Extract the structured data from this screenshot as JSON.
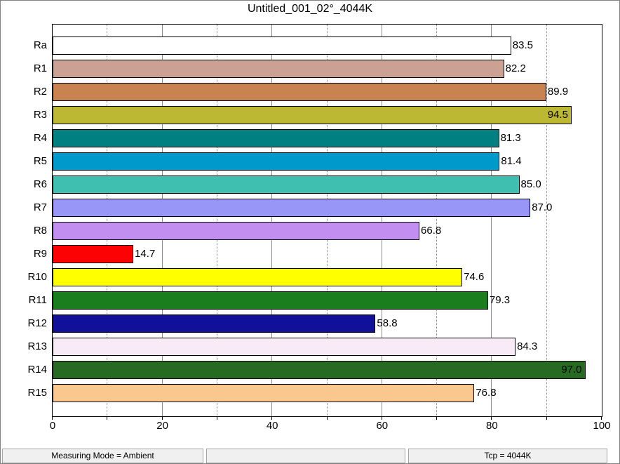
{
  "window": {
    "title": "Untitled_001_02°_4044K"
  },
  "chart_data": {
    "type": "bar",
    "orientation": "horizontal",
    "title": "Untitled_001_02°_4044K",
    "categories": [
      "Ra",
      "R1",
      "R2",
      "R3",
      "R4",
      "R5",
      "R6",
      "R7",
      "R8",
      "R9",
      "R10",
      "R11",
      "R12",
      "R13",
      "R14",
      "R15"
    ],
    "values": [
      83.5,
      82.2,
      89.9,
      94.5,
      81.3,
      81.4,
      85.0,
      87.0,
      66.8,
      14.7,
      74.6,
      79.3,
      58.8,
      84.3,
      97.0,
      76.8
    ],
    "value_labels": [
      "83.5",
      "82.2",
      "89.9",
      "94.5",
      "81.3",
      "81.4",
      "85.0",
      "87.0",
      "66.8",
      "14.7",
      "74.6",
      "79.3",
      "58.8",
      "84.3",
      "97.0",
      "76.8"
    ],
    "bar_colors": [
      "#FFFFFF",
      "#CBA194",
      "#C98350",
      "#BDB833",
      "#008080",
      "#0099CC",
      "#3FBFB0",
      "#9896F6",
      "#C28FF0",
      "#FC0204",
      "#FFFF00",
      "#1A7E1E",
      "#10109B",
      "#F8EBF7",
      "#276A21",
      "#FAC88F"
    ],
    "bar_border_color": "#000000",
    "xlabel": "",
    "ylabel": "",
    "xlim": [
      0,
      100
    ],
    "x_ticks": [
      0,
      20,
      40,
      60,
      80,
      100
    ],
    "x_minor_ticks": [
      10,
      30,
      50,
      70,
      90
    ],
    "grid": true,
    "gridline_color": "#8a8a8a"
  },
  "status_bar": {
    "cells": [
      {
        "text": "Measuring Mode = Ambient"
      },
      {
        "text": ""
      },
      {
        "text": "Tcp = 4044K"
      }
    ]
  }
}
